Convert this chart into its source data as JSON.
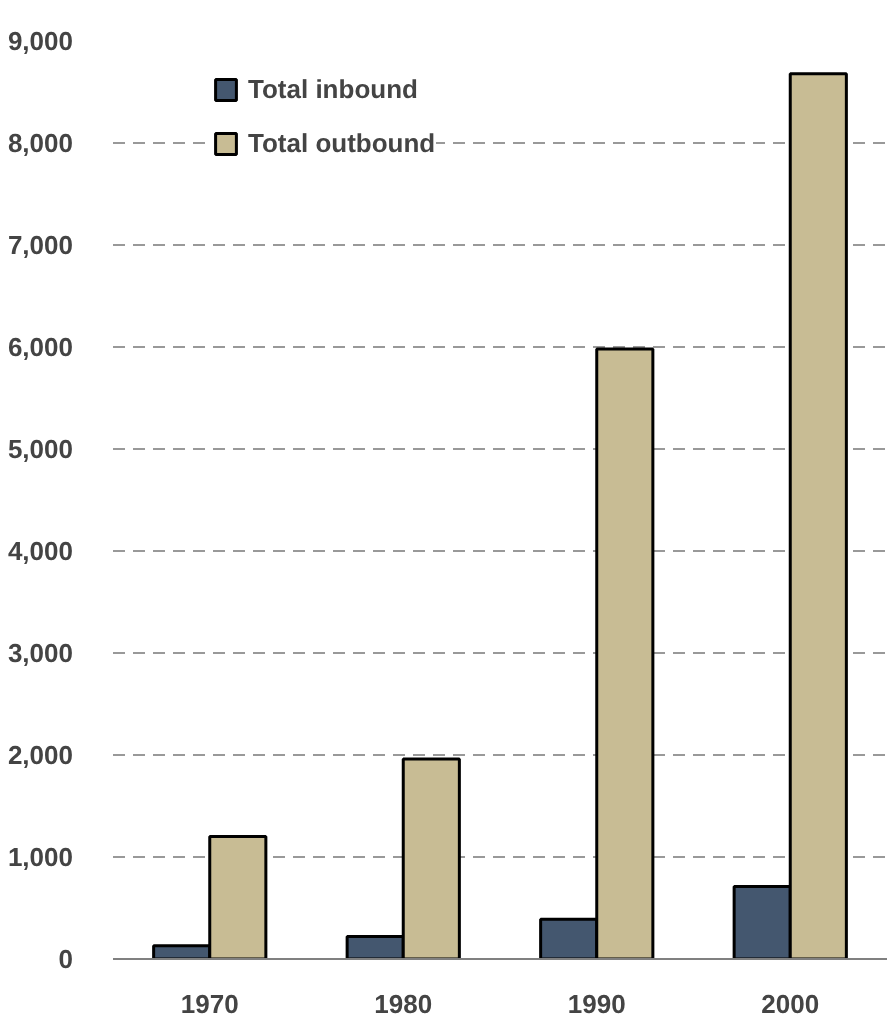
{
  "chart_data": {
    "type": "bar",
    "categories": [
      "1970",
      "1980",
      "1990",
      "2000"
    ],
    "series": [
      {
        "name": "Total inbound",
        "color": "#44576f",
        "values": [
          130,
          220,
          390,
          710
        ]
      },
      {
        "name": "Total outbound",
        "color": "#c8bc94",
        "values": [
          1200,
          1960,
          5980,
          8680
        ]
      }
    ],
    "ylim": [
      0,
      9000
    ],
    "yticks": [
      {
        "value": 0,
        "label": "0"
      },
      {
        "value": 1000,
        "label": "1,000"
      },
      {
        "value": 2000,
        "label": "2,000"
      },
      {
        "value": 3000,
        "label": "3,000"
      },
      {
        "value": 4000,
        "label": "4,000"
      },
      {
        "value": 5000,
        "label": "5,000"
      },
      {
        "value": 6000,
        "label": "6,000"
      },
      {
        "value": 7000,
        "label": "7,000"
      },
      {
        "value": 8000,
        "label": "8,000"
      },
      {
        "value": 9000,
        "label": "9,000"
      }
    ],
    "grid": "y",
    "legend": "top left"
  }
}
